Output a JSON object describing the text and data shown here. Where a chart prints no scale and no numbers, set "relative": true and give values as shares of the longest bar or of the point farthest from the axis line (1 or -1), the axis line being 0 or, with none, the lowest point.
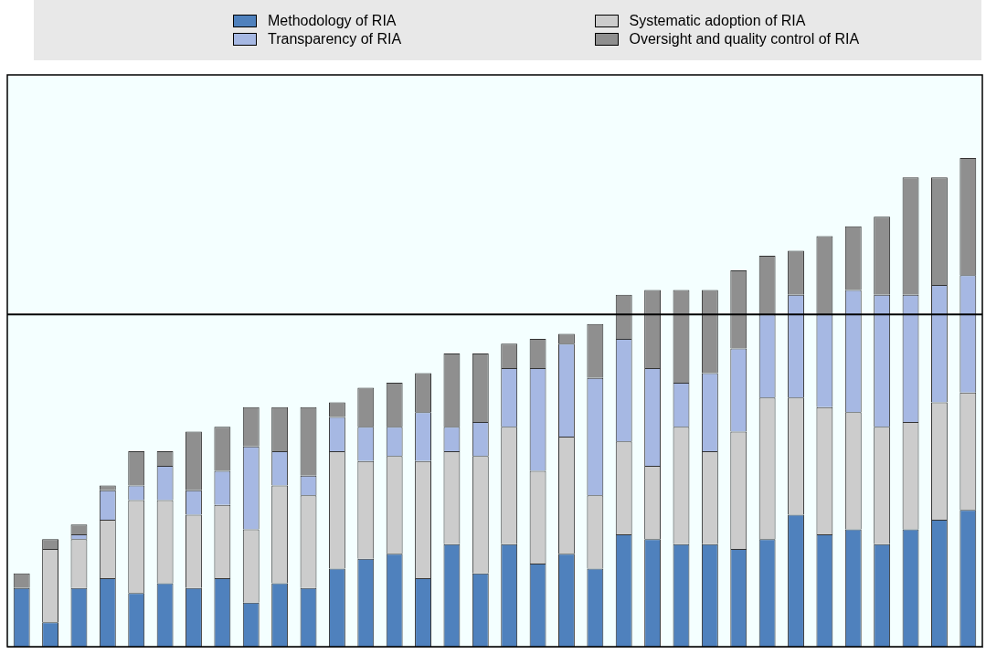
{
  "chart_data": {
    "type": "bar",
    "stacked": true,
    "relative": true,
    "legend": "top",
    "categories": [
      null,
      null,
      null,
      null,
      null,
      null,
      null,
      null,
      null,
      null,
      null,
      null,
      null,
      null,
      null,
      null,
      null,
      null,
      null,
      null,
      null,
      null,
      null,
      null,
      null,
      null,
      null,
      null,
      null,
      null,
      null,
      null,
      null,
      null
    ],
    "series": [
      {
        "name": "Methodology of RIA",
        "color": "#4f81bd",
        "values": [
          0.12,
          0.05,
          0.12,
          0.14,
          0.11,
          0.13,
          0.12,
          0.14,
          0.09,
          0.13,
          0.12,
          0.16,
          0.18,
          0.19,
          0.14,
          0.21,
          0.15,
          0.21,
          0.17,
          0.19,
          0.16,
          0.23,
          0.22,
          0.21,
          0.21,
          0.2,
          0.22,
          0.27,
          0.23,
          0.24,
          0.21,
          0.24,
          0.26,
          0.28
        ]
      },
      {
        "name": "Systematic adoption of RIA",
        "color": "#cccccc",
        "values": [
          0,
          0.15,
          0.1,
          0.12,
          0.19,
          0.17,
          0.15,
          0.15,
          0.15,
          0.2,
          0.19,
          0.24,
          0.2,
          0.2,
          0.24,
          0.19,
          0.24,
          0.24,
          0.19,
          0.24,
          0.15,
          0.19,
          0.15,
          0.24,
          0.19,
          0.24,
          0.29,
          0.24,
          0.26,
          0.24,
          0.24,
          0.22,
          0.24,
          0.24
        ]
      },
      {
        "name": "Transparency of RIA",
        "color": "#a6b8e3",
        "values": [
          0,
          0,
          0.01,
          0.06,
          0.03,
          0.07,
          0.05,
          0.07,
          0.17,
          0.07,
          0.04,
          0.07,
          0.07,
          0.06,
          0.1,
          0.05,
          0.07,
          0.12,
          0.21,
          0.19,
          0.24,
          0.21,
          0.2,
          0.09,
          0.16,
          0.17,
          0.17,
          0.21,
          0.19,
          0.25,
          0.27,
          0.26,
          0.24,
          0.24
        ]
      },
      {
        "name": "Oversight and quality control of RIA",
        "color": "#8f8f8f",
        "values": [
          0.03,
          0.02,
          0.02,
          0.01,
          0.07,
          0.03,
          0.12,
          0.09,
          0.08,
          0.09,
          0.14,
          0.03,
          0.08,
          0.09,
          0.08,
          0.15,
          0.14,
          0.05,
          0.06,
          0.02,
          0.11,
          0.09,
          0.16,
          0.19,
          0.17,
          0.16,
          0.12,
          0.09,
          0.16,
          0.13,
          0.16,
          0.24,
          0.22,
          0.24
        ]
      }
    ],
    "ref_lines": [
      {
        "axis": "y",
        "value": 0.68,
        "color": "#000000"
      }
    ]
  }
}
